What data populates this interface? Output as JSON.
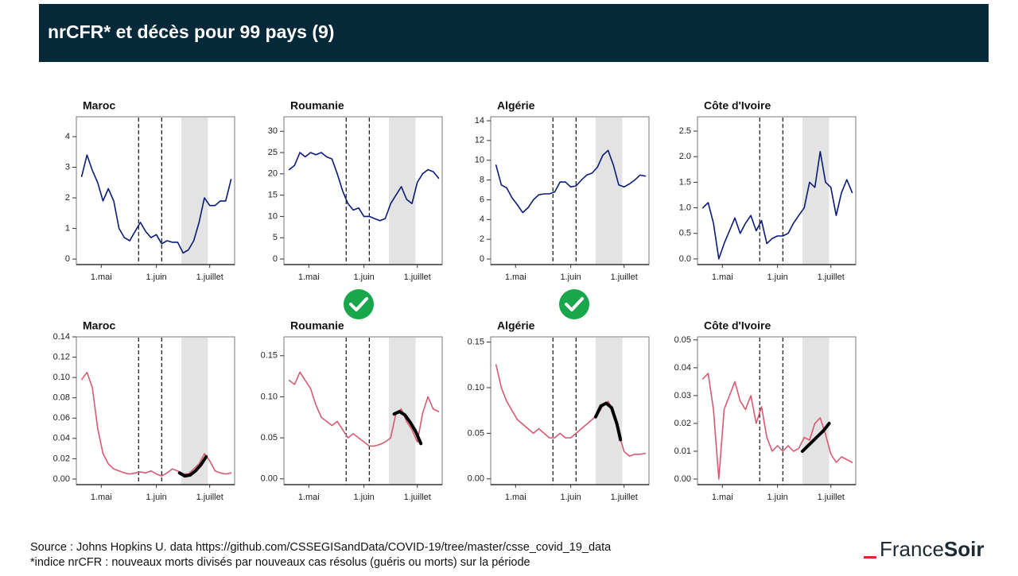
{
  "header": {
    "title": "nrCFR* et décès pour 99 pays (9)"
  },
  "chart_data": [
    {
      "type": "line",
      "title": "Maroc",
      "x": [
        111,
        114,
        117,
        120,
        123,
        126,
        129,
        132,
        135,
        138,
        141,
        144,
        147,
        150,
        153,
        156,
        159,
        162,
        165,
        168,
        171,
        174,
        177,
        180,
        183,
        186,
        189,
        192,
        195
      ],
      "series": [
        {
          "color": "#0a1a78",
          "values": [
            2.7,
            3.4,
            2.9,
            2.5,
            1.9,
            2.3,
            1.9,
            1.0,
            0.7,
            0.6,
            0.9,
            1.2,
            0.9,
            0.7,
            0.8,
            0.5,
            0.6,
            0.55,
            0.55,
            0.2,
            0.3,
            0.6,
            1.2,
            2.0,
            1.75,
            1.75,
            1.9,
            1.9,
            2.6
          ]
        }
      ],
      "vlines": [
        143,
        156
      ],
      "shade": [
        167,
        182
      ],
      "xlim": [
        108,
        197
      ],
      "xticks": [
        {
          "value": 122,
          "label": "1.mai"
        },
        {
          "value": 153,
          "label": "1.juin"
        },
        {
          "value": 183,
          "label": "1.juillet"
        }
      ],
      "ylim": [
        -0.18,
        4.65
      ],
      "yticks": [
        0,
        1,
        2,
        3,
        4
      ]
    },
    {
      "type": "line",
      "title": "Roumanie",
      "x": [
        111,
        114,
        117,
        120,
        123,
        126,
        129,
        132,
        135,
        138,
        141,
        144,
        147,
        150,
        153,
        156,
        159,
        162,
        165,
        168,
        171,
        174,
        177,
        180,
        183,
        186,
        189,
        192,
        195
      ],
      "series": [
        {
          "color": "#0a1a78",
          "values": [
            21,
            22,
            25,
            24,
            25,
            24.5,
            25,
            24,
            23.5,
            20,
            16,
            13,
            11.5,
            12,
            10,
            10,
            9.5,
            9,
            9.5,
            13,
            15,
            17,
            14,
            13,
            18,
            20,
            21,
            20.5,
            19
          ]
        }
      ],
      "vlines": [
        143,
        156
      ],
      "shade": [
        167,
        182
      ],
      "xlim": [
        108,
        197
      ],
      "xticks": [
        {
          "value": 122,
          "label": "1.mai"
        },
        {
          "value": 153,
          "label": "1.juin"
        },
        {
          "value": 183,
          "label": "1.juillet"
        }
      ],
      "ylim": [
        -1.3,
        33.4
      ],
      "yticks": [
        0,
        5,
        10,
        15,
        20,
        25,
        30
      ]
    },
    {
      "type": "line",
      "title": "Algérie",
      "x": [
        111,
        114,
        117,
        120,
        123,
        126,
        129,
        132,
        135,
        138,
        141,
        144,
        147,
        150,
        153,
        156,
        159,
        162,
        165,
        168,
        171,
        174,
        177,
        180,
        183,
        186,
        189,
        192,
        195
      ],
      "series": [
        {
          "color": "#0a1a78",
          "values": [
            9.5,
            7.5,
            7.2,
            6.2,
            5.5,
            4.7,
            5.2,
            6.0,
            6.5,
            6.6,
            6.6,
            6.8,
            7.8,
            7.8,
            7.3,
            7.4,
            8.0,
            8.5,
            8.7,
            9.3,
            10.5,
            11.0,
            9.5,
            7.5,
            7.3,
            7.6,
            8.0,
            8.5,
            8.4
          ]
        }
      ],
      "vlines": [
        143,
        156
      ],
      "shade": [
        167,
        182
      ],
      "xlim": [
        108,
        197
      ],
      "xticks": [
        {
          "value": 122,
          "label": "1.mai"
        },
        {
          "value": 153,
          "label": "1.juin"
        },
        {
          "value": 183,
          "label": "1.juillet"
        }
      ],
      "ylim": [
        -0.56,
        14.4
      ],
      "yticks": [
        0,
        2,
        4,
        6,
        8,
        10,
        12,
        14
      ]
    },
    {
      "type": "line",
      "title": "Côte d'Ivoire",
      "x": [
        111,
        114,
        117,
        120,
        123,
        126,
        129,
        132,
        135,
        138,
        141,
        144,
        147,
        150,
        153,
        156,
        159,
        162,
        165,
        168,
        171,
        174,
        177,
        180,
        183,
        186,
        189,
        192,
        195
      ],
      "series": [
        {
          "color": "#0a1a78",
          "values": [
            1.0,
            1.1,
            0.7,
            0.0,
            0.3,
            0.55,
            0.8,
            0.5,
            0.7,
            0.85,
            0.55,
            0.75,
            0.3,
            0.4,
            0.45,
            0.45,
            0.5,
            0.7,
            0.85,
            1.0,
            1.5,
            1.4,
            2.1,
            1.5,
            1.4,
            0.85,
            1.3,
            1.55,
            1.3
          ]
        }
      ],
      "vlines": [
        143,
        156
      ],
      "shade": [
        167,
        182
      ],
      "xlim": [
        108,
        197
      ],
      "xticks": [
        {
          "value": 122,
          "label": "1.mai"
        },
        {
          "value": 153,
          "label": "1.juin"
        },
        {
          "value": 183,
          "label": "1.juillet"
        }
      ],
      "ylim": [
        -0.11,
        2.78
      ],
      "yticks": [
        {
          "value": 0,
          "label": "0.0"
        },
        {
          "value": 0.5,
          "label": "0.5"
        },
        {
          "value": 1,
          "label": "1.0"
        },
        {
          "value": 1.5,
          "label": "1.5"
        },
        {
          "value": 2,
          "label": "2.0"
        },
        {
          "value": 2.5,
          "label": "2.5"
        }
      ]
    },
    {
      "type": "line",
      "title": "Maroc",
      "x": [
        111,
        114,
        117,
        120,
        123,
        126,
        129,
        132,
        135,
        138,
        141,
        144,
        147,
        150,
        153,
        156,
        159,
        162,
        165,
        168,
        171,
        174,
        177,
        180,
        183,
        186,
        189,
        192,
        195
      ],
      "series": [
        {
          "color": "#d65a70",
          "values": [
            0.098,
            0.105,
            0.09,
            0.05,
            0.025,
            0.015,
            0.01,
            0.008,
            0.006,
            0.005,
            0.006,
            0.007,
            0.006,
            0.008,
            0.005,
            0.003,
            0.006,
            0.01,
            0.008,
            0.005,
            0.005,
            0.01,
            0.015,
            0.025,
            0.018,
            0.008,
            0.006,
            0.005,
            0.006
          ]
        }
      ],
      "fit": {
        "color": "#000000",
        "x": [
          166,
          169,
          172,
          175,
          178,
          181
        ],
        "values": [
          0.006,
          0.003,
          0.004,
          0.008,
          0.014,
          0.022
        ]
      },
      "vlines": [
        143,
        156
      ],
      "shade": [
        167,
        182
      ],
      "xlim": [
        108,
        197
      ],
      "xticks": [
        {
          "value": 122,
          "label": "1.mai"
        },
        {
          "value": 153,
          "label": "1.juin"
        },
        {
          "value": 183,
          "label": "1.juillet"
        }
      ],
      "ylim": [
        -0.0055,
        0.14
      ],
      "yticks": [
        {
          "value": 0,
          "label": "0.00"
        },
        {
          "value": 0.02,
          "label": "0.02"
        },
        {
          "value": 0.04,
          "label": "0.04"
        },
        {
          "value": 0.06,
          "label": "0.06"
        },
        {
          "value": 0.08,
          "label": "0.08"
        },
        {
          "value": 0.1,
          "label": "0.10"
        },
        {
          "value": 0.12,
          "label": "0.12"
        },
        {
          "value": 0.14,
          "label": "0.14"
        }
      ]
    },
    {
      "type": "line",
      "title": "Roumanie",
      "x": [
        111,
        114,
        117,
        120,
        123,
        126,
        129,
        132,
        135,
        138,
        141,
        144,
        147,
        150,
        153,
        156,
        159,
        162,
        165,
        168,
        171,
        174,
        177,
        180,
        183,
        186,
        189,
        192,
        195
      ],
      "series": [
        {
          "color": "#d65a70",
          "values": [
            0.12,
            0.115,
            0.13,
            0.12,
            0.11,
            0.09,
            0.075,
            0.07,
            0.065,
            0.07,
            0.06,
            0.05,
            0.055,
            0.05,
            0.045,
            0.04,
            0.04,
            0.042,
            0.045,
            0.05,
            0.08,
            0.085,
            0.07,
            0.06,
            0.045,
            0.08,
            0.1,
            0.085,
            0.082
          ]
        }
      ],
      "fit": {
        "color": "#000000",
        "x": [
          170,
          173,
          176,
          179,
          182,
          185
        ],
        "values": [
          0.079,
          0.082,
          0.078,
          0.069,
          0.058,
          0.043
        ]
      },
      "vlines": [
        143,
        156
      ],
      "shade": [
        167,
        182
      ],
      "xlim": [
        108,
        197
      ],
      "xticks": [
        {
          "value": 122,
          "label": "1.mai"
        },
        {
          "value": 153,
          "label": "1.juin"
        },
        {
          "value": 183,
          "label": "1.juillet"
        }
      ],
      "ylim": [
        -0.007,
        0.173
      ],
      "yticks": [
        {
          "value": 0,
          "label": "0.00"
        },
        {
          "value": 0.05,
          "label": "0.05"
        },
        {
          "value": 0.1,
          "label": "0.10"
        },
        {
          "value": 0.15,
          "label": "0.15"
        }
      ]
    },
    {
      "type": "line",
      "title": "Algérie",
      "x": [
        111,
        114,
        117,
        120,
        123,
        126,
        129,
        132,
        135,
        138,
        141,
        144,
        147,
        150,
        153,
        156,
        159,
        162,
        165,
        168,
        171,
        174,
        177,
        180,
        183,
        186,
        189,
        192,
        195
      ],
      "series": [
        {
          "color": "#d65a70",
          "values": [
            0.125,
            0.1,
            0.085,
            0.075,
            0.065,
            0.06,
            0.055,
            0.05,
            0.055,
            0.05,
            0.045,
            0.045,
            0.05,
            0.045,
            0.045,
            0.05,
            0.055,
            0.06,
            0.065,
            0.07,
            0.08,
            0.085,
            0.075,
            0.05,
            0.03,
            0.025,
            0.027,
            0.027,
            0.028
          ]
        }
      ],
      "fit": {
        "color": "#000000",
        "x": [
          167,
          170,
          173,
          176,
          179,
          181
        ],
        "values": [
          0.068,
          0.08,
          0.083,
          0.078,
          0.06,
          0.043
        ]
      },
      "vlines": [
        143,
        156
      ],
      "shade": [
        167,
        182
      ],
      "xlim": [
        108,
        197
      ],
      "xticks": [
        {
          "value": 122,
          "label": "1.mai"
        },
        {
          "value": 153,
          "label": "1.juin"
        },
        {
          "value": 183,
          "label": "1.juillet"
        }
      ],
      "ylim": [
        -0.0063,
        0.1557
      ],
      "yticks": [
        {
          "value": 0,
          "label": "0.00"
        },
        {
          "value": 0.05,
          "label": "0.05"
        },
        {
          "value": 0.1,
          "label": "0.10"
        },
        {
          "value": 0.15,
          "label": "0.15"
        }
      ]
    },
    {
      "type": "line",
      "title": "Côte d'Ivoire",
      "x": [
        111,
        114,
        117,
        120,
        123,
        126,
        129,
        132,
        135,
        138,
        141,
        144,
        147,
        150,
        153,
        156,
        159,
        162,
        165,
        168,
        171,
        174,
        177,
        180,
        183,
        186,
        189,
        192,
        195
      ],
      "series": [
        {
          "color": "#d65a70",
          "values": [
            0.036,
            0.038,
            0.025,
            0.0,
            0.025,
            0.03,
            0.035,
            0.028,
            0.025,
            0.03,
            0.02,
            0.026,
            0.015,
            0.01,
            0.012,
            0.01,
            0.012,
            0.01,
            0.011,
            0.015,
            0.014,
            0.02,
            0.022,
            0.016,
            0.009,
            0.006,
            0.008,
            0.007,
            0.006
          ]
        }
      ],
      "fit": {
        "color": "#000000",
        "x": [
          167,
          171,
          175,
          179,
          182
        ],
        "values": [
          0.01,
          0.0125,
          0.015,
          0.0175,
          0.02
        ]
      },
      "vlines": [
        143,
        156
      ],
      "shade": [
        167,
        182
      ],
      "xlim": [
        108,
        197
      ],
      "xticks": [
        {
          "value": 122,
          "label": "1.mai"
        },
        {
          "value": 153,
          "label": "1.juin"
        },
        {
          "value": 183,
          "label": "1.juillet"
        }
      ],
      "ylim": [
        -0.002,
        0.0511
      ],
      "yticks": [
        {
          "value": 0,
          "label": "0.00"
        },
        {
          "value": 0.01,
          "label": "0.01"
        },
        {
          "value": 0.02,
          "label": "0.02"
        },
        {
          "value": 0.03,
          "label": "0.03"
        },
        {
          "value": 0.04,
          "label": "0.04"
        },
        {
          "value": 0.05,
          "label": "0.05"
        }
      ]
    }
  ],
  "source": "Source : Johns Hopkins U. data https://github.com/CSSEGISandData/COVID-19/tree/master/csse_covid_19_data",
  "footnote": "*indice nrCFR : nouveaux morts divisés par nouveaux cas résolus (guéris ou morts) sur la période",
  "logo": {
    "left": "France",
    "right": "Soir"
  }
}
